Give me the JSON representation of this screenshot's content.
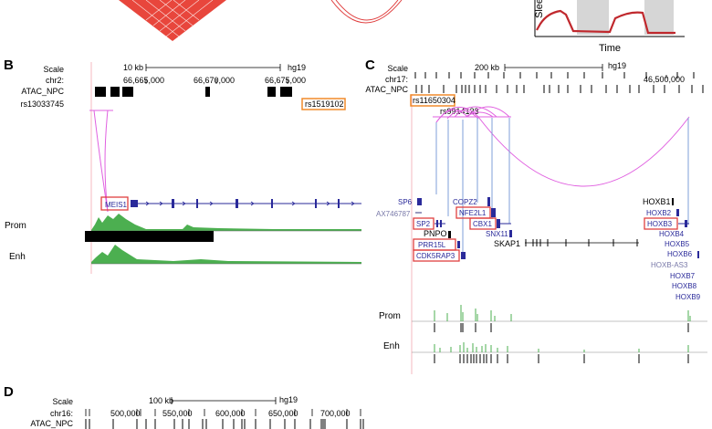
{
  "panels": {
    "A": {
      "axis_label_y": "Sleep",
      "axis_label_x": "Time"
    },
    "B": {
      "letter": "B",
      "scale_label": "Scale",
      "scale_value": "10 kb",
      "assembly": "hg19",
      "chrom_label": "chr2:",
      "coords": [
        "66,665,000",
        "66,670,000",
        "66,675,000"
      ],
      "atac_label": "ATAC_NPC",
      "snp_left": "rs13033745",
      "snp_right": "rs1519102",
      "gene": "MEIS1",
      "prom_label": "Prom",
      "enh_label": "Enh"
    },
    "C": {
      "letter": "C",
      "scale_label": "Scale",
      "scale_value": "200 kb",
      "assembly": "hg19",
      "chrom_label": "chr17:",
      "coord": "46,500,000",
      "atac_label": "ATAC_NPC",
      "snp_boxed": "rs11650304",
      "snp_plain": "rs9914123",
      "genes_left": [
        "SP6",
        "AX746787",
        "SP2",
        "PNPO",
        "PRR15L",
        "CDK5RAP3"
      ],
      "genes_mid": [
        "COPZ2",
        "NFE2L1",
        "CBX1",
        "SNX11",
        "SKAP1"
      ],
      "genes_right": [
        "HOXB1",
        "HOXB2",
        "HOXB3",
        "HOXB4",
        "HOXB5",
        "HOXB6",
        "HOXB-AS3",
        "HOXB7",
        "HOXB8",
        "HOXB9"
      ],
      "prom_label": "Prom",
      "enh_label": "Enh"
    },
    "D": {
      "letter": "D",
      "scale_label": "Scale",
      "scale_value": "100 kb",
      "assembly": "hg19",
      "chrom_label": "chr16:",
      "coords": [
        "500,000",
        "550,000",
        "600,000",
        "650,000",
        "700,000"
      ],
      "atac_label": "ATAC_NPC"
    }
  },
  "colors": {
    "highlight_box": "#e04040",
    "snp_box": "#f08a2a",
    "loop": "#e060e0",
    "link": "#7f9fd8",
    "gene": "#2a2a9a",
    "signal": "#4caf50",
    "heatmap": "#e8463c"
  }
}
